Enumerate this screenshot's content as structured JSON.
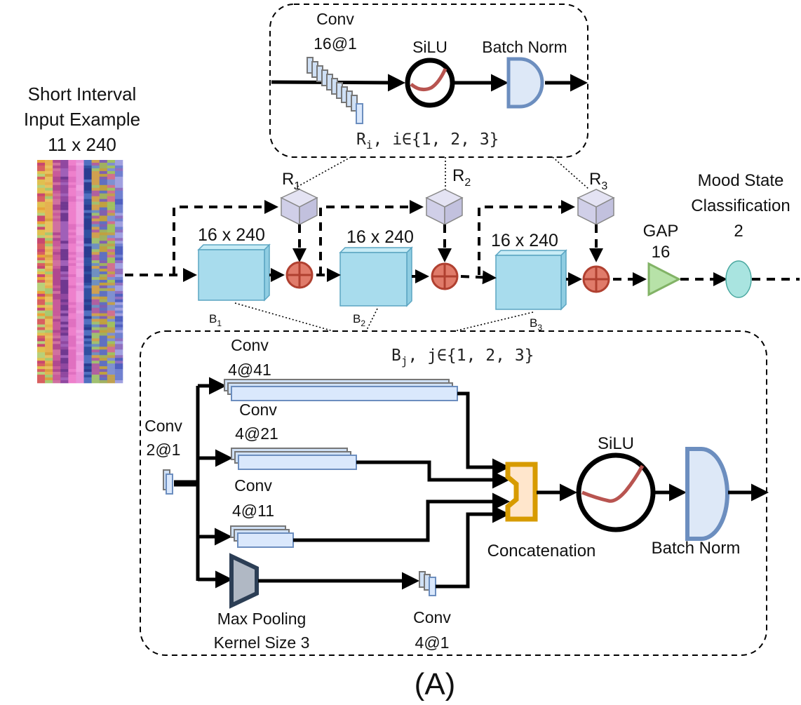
{
  "input": {
    "line1": "Short Interval",
    "line2": "Input Example",
    "line3": "11 x 240"
  },
  "residual_panel": {
    "conv_label": "Conv",
    "conv_spec": "16@1",
    "silu": "SiLU",
    "batch_norm": "Batch Norm",
    "caption_r": "R",
    "caption_r_sub": "i",
    "caption_r_rest": ", i∈{1, 2, 3}"
  },
  "residuals": [
    {
      "letter": "R",
      "sub": "1"
    },
    {
      "letter": "R",
      "sub": "2"
    },
    {
      "letter": "R",
      "sub": "3"
    }
  ],
  "blocks": [
    {
      "size": "16 x 240",
      "letter": "B",
      "sub": "1"
    },
    {
      "size": "16 x 240",
      "letter": "B",
      "sub": "2"
    },
    {
      "size": "16 x 240",
      "letter": "B",
      "sub": "3"
    }
  ],
  "gap": {
    "label": "GAP",
    "value": "16"
  },
  "output": {
    "line1": "Mood State",
    "line2": "Classification",
    "line3": "2"
  },
  "block_panel": {
    "caption_b": "B",
    "caption_b_sub": "j",
    "caption_b_rest": ", j∈{1, 2, 3}",
    "conv_in_label": "Conv",
    "conv_in_spec": "2@1",
    "branch1_label": "Conv",
    "branch1_spec": "4@41",
    "branch2_label": "Conv",
    "branch2_spec": "4@21",
    "branch3_label": "Conv",
    "branch3_spec": "4@11",
    "pool_line1": "Max Pooling",
    "pool_line2": "Kernel Size 3",
    "conv_out_label": "Conv",
    "conv_out_spec": "4@1",
    "concat": "Concatenation",
    "silu": "SiLU",
    "batch_norm": "Batch Norm"
  },
  "figure_label": "(A)",
  "colors": {
    "block": "#a8dced",
    "residual_cube": "#d0cfe8",
    "add": "#c14a3c",
    "gap": "#b7e2a8",
    "output": "#a9e4e0",
    "batchnorm": "#dde8f7",
    "batchnorm_stroke": "#6c8ebf",
    "concat": "#ffe6cc",
    "concat_stroke": "#d79b00",
    "silu_curve": "#b85450"
  }
}
